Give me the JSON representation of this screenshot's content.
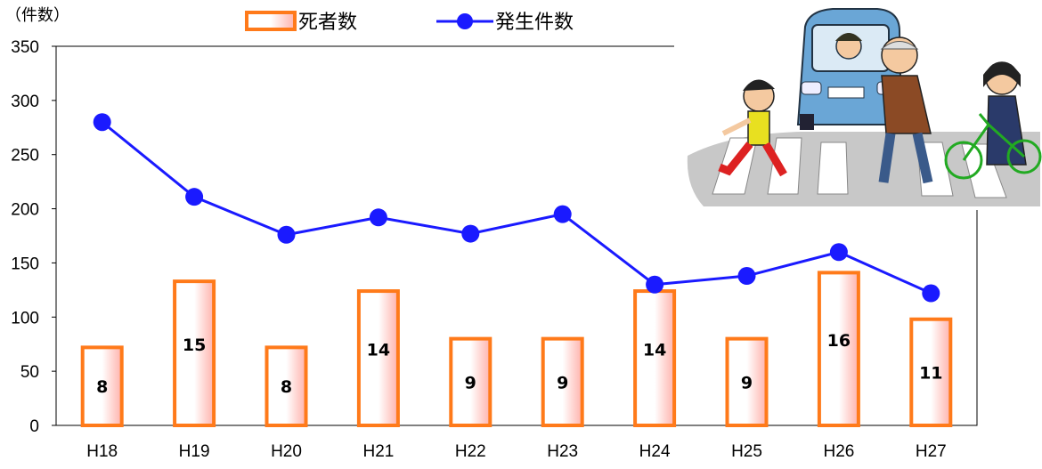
{
  "chart_data": {
    "type": "bar",
    "unit_label": "（件数）",
    "categories": [
      "H18",
      "H19",
      "H20",
      "H21",
      "H22",
      "H23",
      "H24",
      "H25",
      "H26",
      "H27"
    ],
    "ylim": [
      0,
      350
    ],
    "yticks": [
      0,
      50,
      100,
      150,
      200,
      250,
      300,
      350
    ],
    "legend_position": "top-center",
    "grid": false,
    "series": [
      {
        "name": "死者数",
        "kind": "bar",
        "color": "#ff7a1a",
        "plotted_values": [
          72,
          133,
          72,
          124,
          80,
          80,
          124,
          80,
          141,
          98
        ],
        "labels": [
          "8",
          "15",
          "8",
          "14",
          "9",
          "9",
          "14",
          "9",
          "16",
          "11"
        ]
      },
      {
        "name": "発生件数",
        "kind": "line",
        "color": "#1a1aff",
        "values": [
          280,
          211,
          176,
          192,
          177,
          195,
          130,
          138,
          160,
          122
        ]
      }
    ]
  },
  "illustration": {
    "icon": "crosswalk-illustration-icon"
  }
}
